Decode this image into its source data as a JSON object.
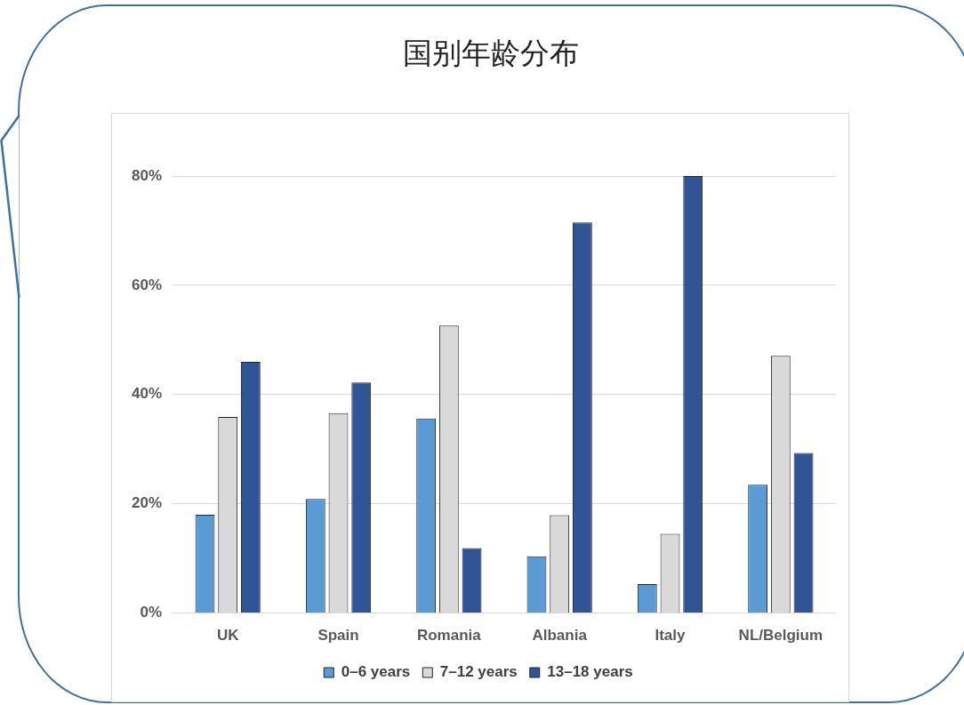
{
  "chart_data": {
    "type": "bar",
    "title": "国别年龄分布",
    "categories": [
      "UK",
      "Spain",
      "Romania",
      "Albania",
      "Italy",
      "NL/Belgium"
    ],
    "series": [
      {
        "name": "0–6 years",
        "color": "#5b9bd5",
        "values": [
          18,
          20.9,
          35.6,
          10.4,
          5.3,
          23.5
        ]
      },
      {
        "name": "7–12 years",
        "color": "#d9d9d9",
        "values": [
          35.9,
          36.6,
          52.6,
          17.9,
          14.5,
          47.1
        ]
      },
      {
        "name": "13–18 years",
        "color": "#2f5597",
        "values": [
          46,
          42.2,
          11.9,
          71.5,
          80,
          29.3
        ]
      }
    ],
    "ylim": [
      0,
      80
    ],
    "yticks": [
      {
        "value": 0,
        "label": "0%"
      },
      {
        "value": 20,
        "label": "20%"
      },
      {
        "value": 40,
        "label": "40%"
      },
      {
        "value": 60,
        "label": "60%"
      },
      {
        "value": 80,
        "label": "80%"
      }
    ],
    "grid": "y",
    "legend": "bottom"
  }
}
